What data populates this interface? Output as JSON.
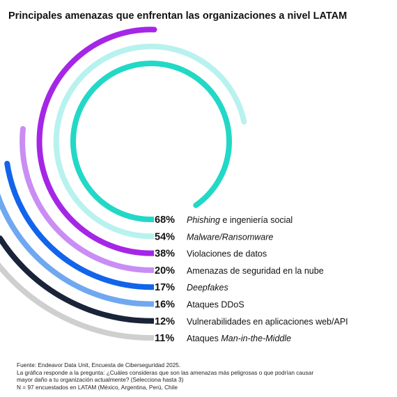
{
  "chart_data": {
    "type": "radial_bar",
    "title": "Principales amenazas que enfrentan las organizaciones a nivel LATAM",
    "unit": "%",
    "series": [
      {
        "value": 68,
        "label": "68%",
        "label_parts": [
          {
            "t": "Phishing",
            "i": true
          },
          {
            "t": " e ingeniería social",
            "i": false
          }
        ],
        "color": "#22d8c6"
      },
      {
        "value": 54,
        "label": "54%",
        "label_parts": [
          {
            "t": "Malware/Ransomware",
            "i": true
          }
        ],
        "color": "#b8f2ee"
      },
      {
        "value": 38,
        "label": "38%",
        "label_parts": [
          {
            "t": "Violaciones de datos",
            "i": false
          }
        ],
        "color": "#a526e6"
      },
      {
        "value": 20,
        "label": "20%",
        "label_parts": [
          {
            "t": "Amenazas de seguridad en la nube",
            "i": false
          }
        ],
        "color": "#c98df4"
      },
      {
        "value": 17,
        "label": "17%",
        "label_parts": [
          {
            "t": "Deepfakes",
            "i": true
          }
        ],
        "color": "#1264ea"
      },
      {
        "value": 16,
        "label": "16%",
        "label_parts": [
          {
            "t": "Ataques DDoS",
            "i": false
          }
        ],
        "color": "#6fa8f0"
      },
      {
        "value": 12,
        "label": "12%",
        "label_parts": [
          {
            "t": "Vulnerabilidades en aplicaciones web/API",
            "i": false
          }
        ],
        "color": "#1a2438"
      },
      {
        "value": 11,
        "label": "11%",
        "label_parts": [
          {
            "t": "Ataques ",
            "i": false
          },
          {
            "t": "Man-in-the-Middle",
            "i": true
          }
        ],
        "color": "#cfcfcf"
      }
    ]
  },
  "footer": {
    "source": "Fuente: Endeavor Data Unit, Encuesta de Ciberseguridad 2025.",
    "question_1": "La gráfica responde a la pregunta:  ¿Cuáles consideras que son las amenazas más peligrosas o que podrían causar",
    "question_2": "mayor daño a tu organización actualmente? (Selecciona hasta 3)",
    "sample": "N = 97 encuestados en LATAM (México, Argentina, Perú, Chile"
  }
}
